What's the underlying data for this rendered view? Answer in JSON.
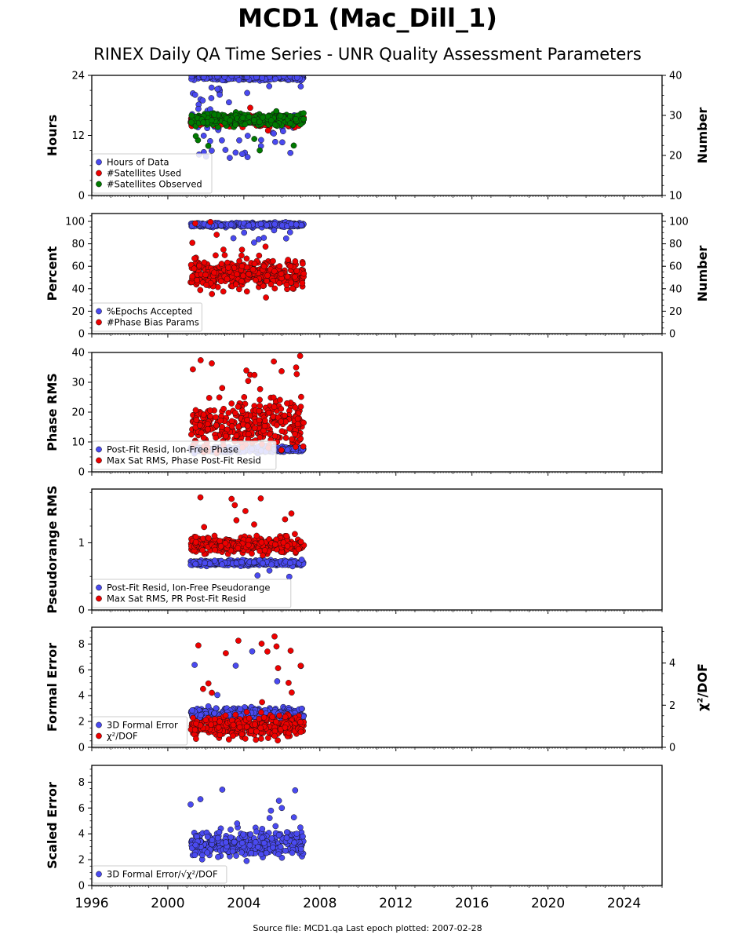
{
  "header": {
    "title": "MCD1 (Mac_Dill_1)",
    "subtitle": "RINEX Daily QA Time Series - UNR Quality Assessment Parameters"
  },
  "footer": {
    "text": "Source file: MCD1.qa Last epoch plotted: 2007-02-28"
  },
  "colors": {
    "blue": "#4a4af0",
    "red": "#ee0000",
    "green": "#007a00",
    "edge": "#111111"
  },
  "chart_data": [
    {
      "type": "scatter",
      "ylabel": "Hours",
      "ylim": [
        0,
        24
      ],
      "yticks": [
        0,
        12,
        24
      ],
      "y2label": "Number",
      "y2lim": [
        10,
        40
      ],
      "y2ticks": [
        10,
        20,
        30,
        40
      ],
      "xlim": [
        1996,
        2026
      ],
      "data_span": [
        2001.2,
        2007.16
      ],
      "legend_position": "lower-left",
      "series": [
        {
          "name": "Hours of Data",
          "color": "blue",
          "axis": "left",
          "center": 23.6,
          "spread": 0.5,
          "outliers": 60,
          "outlier_range": [
            7.5,
            22
          ]
        },
        {
          "name": "#Satellites Used",
          "color": "red",
          "axis": "right",
          "center": 28.6,
          "spread": 1.0,
          "outliers": 6,
          "outlier_range": [
            24,
            32
          ]
        },
        {
          "name": "#Satellites Observed",
          "color": "green",
          "axis": "right",
          "center": 29.0,
          "spread": 1.2,
          "outliers": 6,
          "outlier_range": [
            18,
            26
          ]
        }
      ]
    },
    {
      "type": "scatter",
      "ylabel": "Percent",
      "ylim": [
        0,
        107
      ],
      "yticks": [
        0,
        20,
        40,
        60,
        80,
        100
      ],
      "y2label": "Number",
      "y2lim": [
        0,
        107
      ],
      "y2ticks": [
        0,
        20,
        40,
        60,
        80,
        100
      ],
      "xlim": [
        1996,
        2026
      ],
      "data_span": [
        2001.2,
        2007.16
      ],
      "legend_position": "lower-left",
      "series": [
        {
          "name": "%Epochs Accepted",
          "color": "blue",
          "axis": "left",
          "center": 97,
          "spread": 1.5,
          "outliers": 8,
          "outlier_range": [
            80,
            94
          ]
        },
        {
          "name": "#Phase Bias Params",
          "color": "red",
          "axis": "right",
          "center": 53,
          "spread": 10,
          "outliers": 14,
          "outlier_range": [
            28,
            107
          ]
        }
      ]
    },
    {
      "type": "scatter",
      "ylabel": "Phase RMS",
      "ylim": [
        0,
        40
      ],
      "yticks": [
        0,
        10,
        20,
        30,
        40
      ],
      "xlim": [
        1996,
        2026
      ],
      "data_span": [
        2001.2,
        2007.16
      ],
      "legend_position": "lower-left",
      "series": [
        {
          "name": "Post-Fit Resid, Ion-Free Phase",
          "color": "blue",
          "axis": "left",
          "center": 7.5,
          "spread": 0.8,
          "outliers": 4,
          "outlier_range": [
            5.8,
            9
          ]
        },
        {
          "name": "Max Sat RMS, Phase Post-Fit Resid",
          "color": "red",
          "axis": "left",
          "center": 16,
          "spread": 6.5,
          "outliers": 14,
          "outlier_range": [
            27,
            39
          ]
        }
      ]
    },
    {
      "type": "scatter",
      "ylabel": "Pseudorange RMS",
      "ylim": [
        0,
        1.8
      ],
      "yticks": [
        0,
        1
      ],
      "xlim": [
        1996,
        2026
      ],
      "data_span": [
        2001.2,
        2007.16
      ],
      "legend_position": "lower-left",
      "series": [
        {
          "name": "Post-Fit Resid, Ion-Free Pseudorange",
          "color": "blue",
          "axis": "left",
          "center": 0.7,
          "spread": 0.03,
          "outliers": 3,
          "outlier_range": [
            0.44,
            0.6
          ]
        },
        {
          "name": "Max Sat RMS, PR Post-Fit Resid",
          "color": "red",
          "axis": "left",
          "center": 0.97,
          "spread": 0.1,
          "outliers": 10,
          "outlier_range": [
            1.2,
            1.73
          ]
        }
      ]
    },
    {
      "type": "scatter",
      "ylabel": "Formal Error",
      "ylim": [
        0,
        9.3
      ],
      "yticks": [
        0,
        2,
        4,
        6,
        8
      ],
      "y2label": "χ²/DOF",
      "y2lim": [
        0,
        5.7
      ],
      "y2ticks": [
        0,
        2,
        4
      ],
      "xlim": [
        1996,
        2026
      ],
      "data_span": [
        2001.2,
        2007.16
      ],
      "legend_position": "lower-left",
      "series": [
        {
          "name": "3D Formal Error",
          "color": "blue",
          "axis": "left",
          "center": 2.6,
          "spread": 0.35,
          "outliers": 6,
          "outlier_range": [
            3.5,
            9
          ]
        },
        {
          "name": "χ²/DOF",
          "color": "red",
          "axis": "right",
          "center": 1.0,
          "spread": 0.4,
          "outliers": 16,
          "outlier_range": [
            2.0,
            5.5
          ]
        }
      ]
    },
    {
      "type": "scatter",
      "ylabel": "Scaled Error",
      "ylim": [
        0,
        9.3
      ],
      "yticks": [
        0,
        2,
        4,
        6,
        8
      ],
      "xticks": [
        1996,
        2000,
        2004,
        2008,
        2012,
        2016,
        2020,
        2024
      ],
      "xlim": [
        1996,
        2026
      ],
      "data_span": [
        2001.2,
        2007.16
      ],
      "legend_position": "lower-left",
      "series": [
        {
          "name": "3D Formal Error/√χ²/DOF",
          "color": "blue",
          "axis": "left",
          "center": 3.2,
          "spread": 0.8,
          "outliers": 10,
          "outlier_range": [
            4.5,
            8.9
          ]
        }
      ]
    }
  ]
}
